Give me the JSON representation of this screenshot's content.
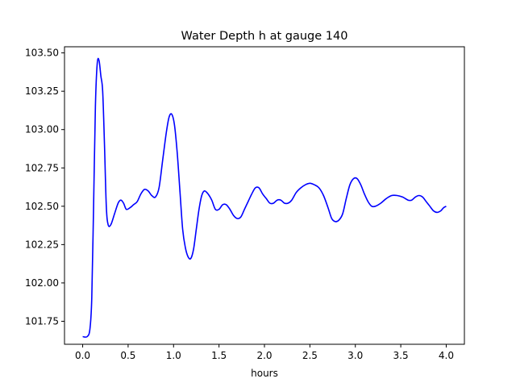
{
  "chart_data": {
    "type": "line",
    "title": "Water Depth h at gauge 140",
    "xlabel": "hours",
    "ylabel": "",
    "grid": false,
    "xlim": [
      -0.2,
      4.2
    ],
    "ylim": [
      101.6,
      103.54
    ],
    "x_ticks": [
      0.0,
      0.5,
      1.0,
      1.5,
      2.0,
      2.5,
      3.0,
      3.5,
      4.0
    ],
    "x_tick_labels": [
      "0.0",
      "0.5",
      "1.0",
      "1.5",
      "2.0",
      "2.5",
      "3.0",
      "3.5",
      "4.0"
    ],
    "y_ticks": [
      101.75,
      102.0,
      102.25,
      102.5,
      102.75,
      103.0,
      103.25,
      103.5
    ],
    "y_tick_labels": [
      "101.75",
      "102.00",
      "102.25",
      "102.50",
      "102.75",
      "103.00",
      "103.25",
      "103.50"
    ],
    "series": [
      {
        "color": "#0000ff",
        "points": [
          [
            0.0,
            101.65
          ],
          [
            0.05,
            101.65
          ],
          [
            0.08,
            101.7
          ],
          [
            0.1,
            101.9
          ],
          [
            0.12,
            102.5
          ],
          [
            0.14,
            103.15
          ],
          [
            0.16,
            103.43
          ],
          [
            0.18,
            103.45
          ],
          [
            0.2,
            103.35
          ],
          [
            0.22,
            103.25
          ],
          [
            0.24,
            102.9
          ],
          [
            0.26,
            102.5
          ],
          [
            0.28,
            102.38
          ],
          [
            0.31,
            102.38
          ],
          [
            0.35,
            102.45
          ],
          [
            0.39,
            102.52
          ],
          [
            0.42,
            102.54
          ],
          [
            0.45,
            102.52
          ],
          [
            0.48,
            102.48
          ],
          [
            0.52,
            102.49
          ],
          [
            0.56,
            102.51
          ],
          [
            0.6,
            102.53
          ],
          [
            0.64,
            102.58
          ],
          [
            0.68,
            102.61
          ],
          [
            0.72,
            102.6
          ],
          [
            0.76,
            102.57
          ],
          [
            0.8,
            102.56
          ],
          [
            0.84,
            102.62
          ],
          [
            0.88,
            102.8
          ],
          [
            0.92,
            102.98
          ],
          [
            0.95,
            103.08
          ],
          [
            0.98,
            103.1
          ],
          [
            1.01,
            103.03
          ],
          [
            1.04,
            102.85
          ],
          [
            1.07,
            102.6
          ],
          [
            1.1,
            102.35
          ],
          [
            1.13,
            102.23
          ],
          [
            1.16,
            102.17
          ],
          [
            1.19,
            102.16
          ],
          [
            1.22,
            102.22
          ],
          [
            1.25,
            102.35
          ],
          [
            1.28,
            102.48
          ],
          [
            1.31,
            102.57
          ],
          [
            1.34,
            102.6
          ],
          [
            1.38,
            102.58
          ],
          [
            1.42,
            102.54
          ],
          [
            1.46,
            102.48
          ],
          [
            1.5,
            102.48
          ],
          [
            1.54,
            102.51
          ],
          [
            1.58,
            102.51
          ],
          [
            1.62,
            102.48
          ],
          [
            1.66,
            102.44
          ],
          [
            1.7,
            102.42
          ],
          [
            1.74,
            102.43
          ],
          [
            1.78,
            102.48
          ],
          [
            1.82,
            102.53
          ],
          [
            1.86,
            102.58
          ],
          [
            1.9,
            102.62
          ],
          [
            1.94,
            102.62
          ],
          [
            1.98,
            102.58
          ],
          [
            2.02,
            102.55
          ],
          [
            2.06,
            102.52
          ],
          [
            2.1,
            102.52
          ],
          [
            2.14,
            102.54
          ],
          [
            2.18,
            102.54
          ],
          [
            2.22,
            102.52
          ],
          [
            2.26,
            102.52
          ],
          [
            2.3,
            102.54
          ],
          [
            2.35,
            102.59
          ],
          [
            2.4,
            102.62
          ],
          [
            2.45,
            102.64
          ],
          [
            2.5,
            102.65
          ],
          [
            2.55,
            102.64
          ],
          [
            2.6,
            102.62
          ],
          [
            2.65,
            102.57
          ],
          [
            2.7,
            102.49
          ],
          [
            2.74,
            102.42
          ],
          [
            2.78,
            102.4
          ],
          [
            2.82,
            102.41
          ],
          [
            2.86,
            102.45
          ],
          [
            2.9,
            102.55
          ],
          [
            2.94,
            102.64
          ],
          [
            2.98,
            102.68
          ],
          [
            3.02,
            102.68
          ],
          [
            3.06,
            102.64
          ],
          [
            3.1,
            102.58
          ],
          [
            3.14,
            102.53
          ],
          [
            3.18,
            102.5
          ],
          [
            3.22,
            102.5
          ],
          [
            3.28,
            102.52
          ],
          [
            3.34,
            102.55
          ],
          [
            3.4,
            102.57
          ],
          [
            3.46,
            102.57
          ],
          [
            3.52,
            102.56
          ],
          [
            3.58,
            102.54
          ],
          [
            3.62,
            102.54
          ],
          [
            3.66,
            102.56
          ],
          [
            3.7,
            102.57
          ],
          [
            3.74,
            102.56
          ],
          [
            3.78,
            102.53
          ],
          [
            3.82,
            102.5
          ],
          [
            3.86,
            102.47
          ],
          [
            3.9,
            102.46
          ],
          [
            3.94,
            102.47
          ],
          [
            3.97,
            102.49
          ],
          [
            4.0,
            102.5
          ]
        ]
      }
    ]
  }
}
